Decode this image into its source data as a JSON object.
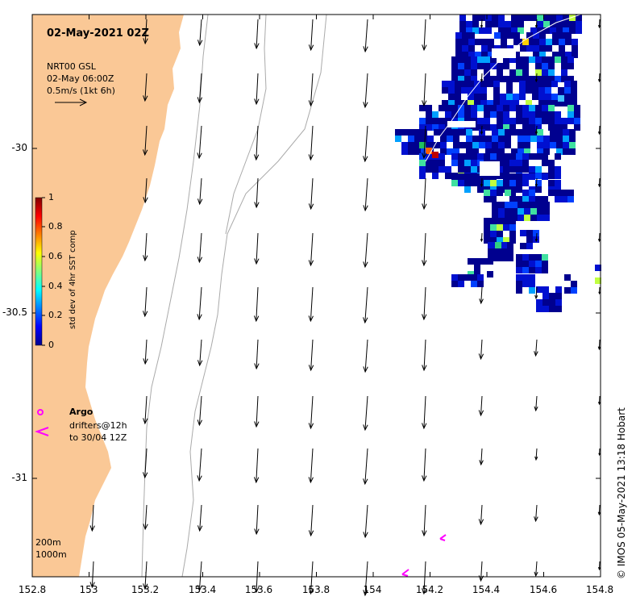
{
  "map": {
    "datetime": "02-May-2021 02Z",
    "velocity_source": "NRT00 GSL",
    "velocity_time": "02-May 06:00Z",
    "velocity_scale": "0.5m/s (1kt 6h)",
    "x_ticks": [
      "152.8",
      "153",
      "153.2",
      "153.4",
      "153.6",
      "153.8",
      "154",
      "154.2",
      "154.4",
      "154.6",
      "154.8"
    ],
    "y_ticks": [
      "-30",
      "-30.5",
      "-31"
    ],
    "lon_range": [
      152.8,
      154.8
    ],
    "lat_range": [
      -31.3,
      -29.6
    ],
    "colors": {
      "land": "#fac896",
      "ocean": "#ffffff",
      "drifter": "#ff00ff",
      "argo": "#ff00ff",
      "contour": "#aaaaaa"
    }
  },
  "colorbar": {
    "label": "std dev of 4hr SST comp",
    "ticks": [
      "0",
      "0.2",
      "0.4",
      "0.6",
      "0.8",
      "1"
    ],
    "colormap": "jet"
  },
  "legend": {
    "argo_label": "Argo",
    "drifters_label": "drifters@12h",
    "drifters_sub": "to 30/04 12Z"
  },
  "contours": {
    "shallow": "200m",
    "deep": "1000m"
  },
  "credit": "© IMOS 05-May-2021 13:18 Hobart"
}
